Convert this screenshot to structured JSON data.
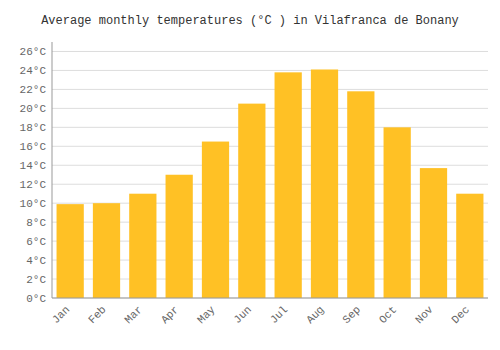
{
  "chart_data": {
    "type": "bar",
    "title": "Average monthly temperatures (°C ) in Vilafranca de Bonany",
    "categories": [
      "Jan",
      "Feb",
      "Mar",
      "Apr",
      "May",
      "Jun",
      "Jul",
      "Aug",
      "Sep",
      "Oct",
      "Nov",
      "Dec"
    ],
    "values": [
      9.9,
      10.0,
      11.0,
      13.0,
      16.5,
      20.5,
      23.8,
      24.1,
      21.8,
      18.0,
      13.7,
      11.0
    ],
    "color": "#FFC125",
    "ylim": [
      0,
      27
    ],
    "yticks": [
      {
        "value": 0,
        "label": "0°C"
      },
      {
        "value": 2,
        "label": "2°C"
      },
      {
        "value": 4,
        "label": "4°C"
      },
      {
        "value": 6,
        "label": "6°C"
      },
      {
        "value": 8,
        "label": "8°C"
      },
      {
        "value": 10,
        "label": "10°C"
      },
      {
        "value": 12,
        "label": "12°C"
      },
      {
        "value": 14,
        "label": "14°C"
      },
      {
        "value": 16,
        "label": "16°C"
      },
      {
        "value": 18,
        "label": "18°C"
      },
      {
        "value": 20,
        "label": "20°C"
      },
      {
        "value": 22,
        "label": "22°C"
      },
      {
        "value": 24,
        "label": "24°C"
      },
      {
        "value": 26,
        "label": "26°C"
      }
    ],
    "grid": true
  }
}
